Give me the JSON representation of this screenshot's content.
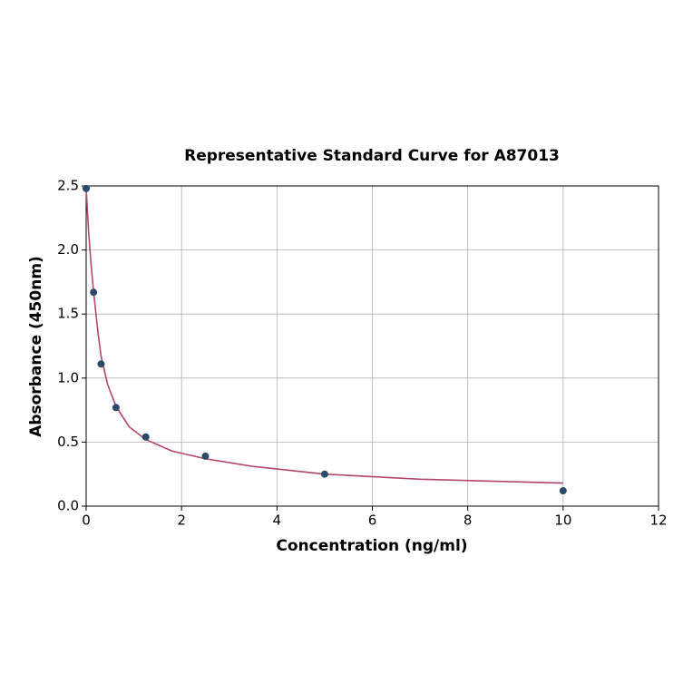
{
  "chart_data": {
    "type": "scatter",
    "title": "Representative Standard Curve for A87013",
    "x_label": "Concentration (ng/ml)",
    "y_label": "Absorbance (450nm)",
    "xlim": [
      0,
      12
    ],
    "xticks": [
      0,
      2,
      4,
      6,
      8,
      10,
      12
    ],
    "ylim": [
      0,
      2.5
    ],
    "yticks": [
      {
        "value": 0,
        "label": "0.0"
      },
      0.5,
      {
        "value": 1,
        "label": "1.0"
      },
      1.5,
      {
        "value": 2,
        "label": "2.0"
      },
      2.5
    ],
    "grid": true,
    "series": [
      {
        "type": "line",
        "color": "#b5456b",
        "x": [
          0,
          0.05,
          0.1,
          0.156,
          0.25,
          0.3125,
          0.45,
          0.625,
          0.9,
          1.25,
          1.8,
          2.5,
          3.5,
          5,
          7,
          10
        ],
        "values": [
          2.48,
          2.15,
          1.9,
          1.67,
          1.35,
          1.17,
          0.95,
          0.78,
          0.62,
          0.52,
          0.43,
          0.37,
          0.31,
          0.25,
          0.21,
          0.18
        ]
      },
      {
        "type": "scatter",
        "color": "#2e4a6b",
        "x": [
          0,
          0.156,
          0.3125,
          0.625,
          1.25,
          2.5,
          5,
          10
        ],
        "values": [
          2.48,
          1.67,
          1.11,
          0.77,
          0.54,
          0.39,
          0.25,
          0.12
        ]
      }
    ]
  }
}
